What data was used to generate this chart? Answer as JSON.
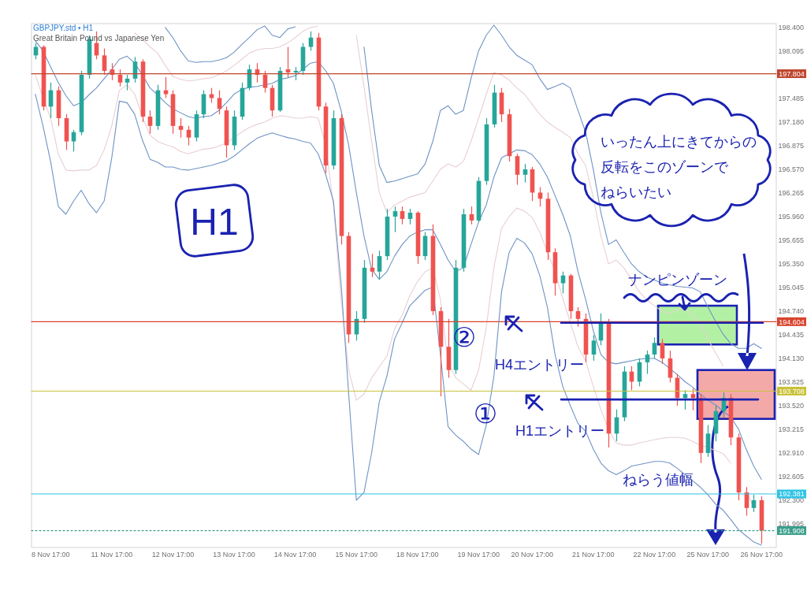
{
  "chart_data": {
    "type": "candlestick",
    "title": "GBPJPY.std • H1",
    "subtitle": "Great Britain Pound vs Japanese Yen",
    "categories": [
      null,
      null,
      "8 Nov 17:00",
      null,
      null,
      null,
      null,
      null,
      null,
      null,
      "11 Nov 17:00",
      null,
      null,
      null,
      null,
      null,
      null,
      null,
      "12 Nov 17:00",
      null,
      null,
      null,
      null,
      null,
      null,
      null,
      "13 Nov 17:00",
      null,
      null,
      null,
      null,
      null,
      null,
      null,
      "14 Nov 17:00",
      null,
      null,
      null,
      null,
      null,
      null,
      null,
      "15 Nov 17:00",
      null,
      null,
      null,
      null,
      null,
      null,
      null,
      "18 Nov 17:00",
      null,
      null,
      null,
      null,
      null,
      null,
      null,
      "19 Nov 17:00",
      null,
      null,
      null,
      null,
      null,
      null,
      "20 Nov 17:00",
      null,
      null,
      null,
      null,
      null,
      null,
      null,
      "21 Nov 17:00",
      null,
      null,
      null,
      null,
      null,
      null,
      null,
      "22 Nov 17:00",
      null,
      null,
      null,
      null,
      null,
      null,
      "25 Nov 17:00",
      null,
      null,
      null,
      null,
      null,
      null,
      "26 Nov 17:00"
    ],
    "ohlc": [
      [
        198.04,
        198.2,
        197.99,
        198.15
      ],
      [
        198.15,
        198.17,
        197.33,
        197.38
      ],
      [
        197.38,
        197.69,
        197.23,
        197.59
      ],
      [
        197.59,
        197.64,
        197.13,
        197.23
      ],
      [
        197.23,
        197.28,
        196.82,
        196.93
      ],
      [
        196.93,
        197.08,
        196.8,
        197.05
      ],
      [
        197.05,
        197.84,
        197.01,
        197.79
      ],
      [
        197.79,
        198.3,
        197.74,
        198.25
      ],
      [
        198.2,
        198.35,
        197.99,
        198.04
      ],
      [
        198.04,
        198.13,
        197.79,
        197.84
      ],
      [
        197.86,
        197.94,
        197.72,
        197.79
      ],
      [
        197.79,
        197.86,
        197.64,
        197.69
      ],
      [
        197.69,
        197.79,
        197.59,
        197.74
      ],
      [
        197.74,
        198.02,
        197.69,
        197.96
      ],
      [
        197.96,
        197.99,
        197.18,
        197.25
      ],
      [
        197.25,
        197.33,
        197.03,
        197.13
      ],
      [
        197.13,
        197.66,
        197.08,
        197.59
      ],
      [
        197.59,
        197.76,
        197.49,
        197.54
      ],
      [
        197.54,
        197.59,
        197.03,
        197.13
      ],
      [
        197.13,
        197.23,
        196.98,
        197.08
      ],
      [
        197.08,
        197.13,
        196.88,
        196.98
      ],
      [
        196.98,
        197.33,
        196.93,
        197.28
      ],
      [
        197.28,
        197.59,
        197.23,
        197.54
      ],
      [
        197.54,
        197.62,
        197.43,
        197.49
      ],
      [
        197.49,
        197.59,
        197.28,
        197.35
      ],
      [
        197.33,
        197.38,
        196.72,
        196.88
      ],
      [
        196.88,
        197.33,
        196.82,
        197.25
      ],
      [
        197.25,
        197.69,
        197.21,
        197.62
      ],
      [
        197.62,
        197.92,
        197.59,
        197.86
      ],
      [
        197.86,
        197.94,
        197.69,
        197.79
      ],
      [
        197.79,
        197.84,
        197.56,
        197.62
      ],
      [
        197.62,
        197.66,
        197.25,
        197.33
      ],
      [
        197.33,
        197.89,
        197.31,
        197.84
      ],
      [
        197.86,
        198.15,
        197.76,
        197.82
      ],
      [
        197.82,
        197.89,
        197.72,
        197.84
      ],
      [
        197.84,
        198.2,
        197.79,
        198.15
      ],
      [
        198.15,
        198.35,
        198.1,
        198.27
      ],
      [
        198.27,
        198.33,
        197.33,
        197.38
      ],
      [
        197.38,
        197.43,
        196.52,
        196.62
      ],
      [
        196.62,
        197.33,
        196.57,
        197.23
      ],
      [
        197.23,
        197.28,
        195.6,
        195.71
      ],
      [
        195.71,
        195.76,
        194.33,
        194.44
      ],
      [
        194.44,
        194.74,
        194.36,
        194.64
      ],
      [
        194.64,
        195.4,
        194.59,
        195.3
      ],
      [
        195.3,
        195.48,
        195.18,
        195.25
      ],
      [
        195.25,
        195.52,
        195.15,
        195.45
      ],
      [
        195.45,
        196.06,
        195.4,
        195.96
      ],
      [
        195.96,
        196.09,
        195.76,
        196.03
      ],
      [
        196.03,
        196.09,
        195.86,
        195.93
      ],
      [
        195.93,
        196.06,
        195.86,
        196.01
      ],
      [
        196.01,
        196.03,
        195.35,
        195.45
      ],
      [
        195.45,
        195.76,
        195.4,
        195.71
      ],
      [
        195.71,
        195.86,
        194.69,
        194.74
      ],
      [
        194.74,
        194.79,
        193.64,
        194.28
      ],
      [
        194.28,
        194.64,
        193.88,
        193.98
      ],
      [
        193.98,
        195.4,
        193.93,
        195.3
      ],
      [
        195.3,
        196.06,
        195.25,
        195.99
      ],
      [
        195.99,
        196.09,
        195.86,
        195.91
      ],
      [
        195.91,
        196.47,
        195.89,
        196.42
      ],
      [
        196.42,
        197.23,
        196.37,
        197.15
      ],
      [
        197.15,
        197.66,
        197.11,
        197.56
      ],
      [
        197.56,
        197.62,
        197.18,
        197.28
      ],
      [
        197.28,
        197.35,
        196.67,
        196.74
      ],
      [
        196.74,
        196.77,
        196.37,
        196.5
      ],
      [
        196.5,
        196.64,
        196.4,
        196.57
      ],
      [
        196.57,
        196.6,
        196.16,
        196.27
      ],
      [
        196.27,
        196.34,
        196.09,
        196.19
      ],
      [
        196.19,
        196.27,
        195.4,
        195.5
      ],
      [
        195.5,
        195.55,
        194.94,
        195.1
      ],
      [
        195.1,
        195.25,
        194.97,
        195.2
      ],
      [
        195.2,
        195.22,
        194.64,
        194.74
      ],
      [
        194.74,
        194.79,
        194.54,
        194.64
      ],
      [
        194.64,
        194.71,
        194.08,
        194.18
      ],
      [
        194.18,
        194.43,
        194.1,
        194.36
      ],
      [
        194.36,
        194.71,
        194.3,
        194.59
      ],
      [
        194.59,
        194.64,
        192.98,
        193.16
      ],
      [
        193.16,
        193.47,
        193.06,
        193.37
      ],
      [
        193.37,
        194.03,
        193.32,
        193.96
      ],
      [
        193.96,
        194.03,
        193.72,
        193.83
      ],
      [
        193.83,
        194.13,
        193.77,
        194.08
      ],
      [
        194.08,
        194.23,
        193.93,
        194.18
      ],
      [
        194.18,
        194.4,
        194.13,
        194.33
      ],
      [
        194.33,
        194.38,
        194.06,
        194.13
      ],
      [
        194.13,
        194.23,
        193.82,
        193.88
      ],
      [
        193.88,
        193.93,
        193.52,
        193.62
      ],
      [
        193.62,
        193.72,
        193.47,
        193.67
      ],
      [
        193.67,
        193.74,
        193.46,
        193.62
      ],
      [
        193.62,
        193.67,
        192.78,
        192.91
      ],
      [
        192.91,
        193.27,
        192.86,
        193.16
      ],
      [
        193.16,
        193.52,
        193.06,
        193.45
      ],
      [
        193.45,
        193.69,
        193.37,
        193.62
      ],
      [
        193.62,
        193.67,
        193.01,
        193.11
      ],
      [
        193.11,
        193.16,
        192.3,
        192.4
      ],
      [
        192.4,
        192.47,
        192.1,
        192.2
      ],
      [
        192.2,
        192.37,
        192.15,
        192.3
      ],
      [
        192.3,
        192.35,
        191.74,
        191.908
      ]
    ],
    "colors": [
      "#26a69a",
      "#ef5350",
      "#26a69a",
      "#ef5350",
      "#ef5350",
      "#26a69a",
      "#26a69a",
      "#26a69a",
      "#ef5350",
      "#ef5350",
      "#ef5350",
      "#ef5350",
      "#26a69a",
      "#26a69a",
      "#ef5350",
      "#ef5350",
      "#26a69a",
      "#ef5350",
      "#ef5350",
      "#ef5350",
      "#ef5350",
      "#26a69a",
      "#26a69a",
      "#ef5350",
      "#ef5350",
      "#ef5350",
      "#26a69a",
      "#26a69a",
      "#26a69a",
      "#ef5350",
      "#ef5350",
      "#ef5350",
      "#26a69a",
      "#ef5350",
      "#26a69a",
      "#26a69a",
      "#26a69a",
      "#ef5350",
      "#ef5350",
      "#26a69a",
      "#ef5350",
      "#ef5350",
      "#26a69a",
      "#26a69a",
      "#ef5350",
      "#26a69a",
      "#26a69a",
      "#26a69a",
      "#ef5350",
      "#26a69a",
      "#ef5350",
      "#26a69a",
      "#ef5350",
      "#ef5350",
      "#ef5350",
      "#26a69a",
      "#26a69a",
      "#ef5350",
      "#26a69a",
      "#26a69a",
      "#26a69a",
      "#ef5350",
      "#ef5350",
      "#ef5350",
      "#26a69a",
      "#ef5350",
      "#ef5350",
      "#ef5350",
      "#ef5350",
      "#26a69a",
      "#ef5350",
      "#ef5350",
      "#ef5350",
      "#26a69a",
      "#26a69a",
      "#ef5350",
      "#26a69a",
      "#26a69a",
      "#ef5350",
      "#26a69a",
      "#26a69a",
      "#26a69a",
      "#ef5350",
      "#ef5350",
      "#ef5350",
      "#26a69a",
      "#ef5350",
      "#ef5350",
      "#26a69a",
      "#26a69a",
      "#26a69a",
      "#ef5350",
      "#ef5350",
      "#ef5350",
      "#26a69a",
      "#ef5350"
    ],
    "series": [
      {
        "type": "line",
        "color": "#6f93c4",
        "values": [
          null,
          null,
          null,
          null,
          null,
          null,
          null,
          null,
          null,
          null,
          null,
          null,
          null,
          null,
          null,
          null,
          null,
          198.4,
          198.27,
          198.1,
          197.97,
          197.95,
          197.96,
          197.96,
          197.98,
          198.01,
          198.08,
          198.18,
          198.27,
          198.37,
          198.42,
          198.3,
          198.27,
          198.38,
          198.41,
          null,
          null,
          null,
          null,
          null,
          null,
          null,
          null,
          198.15,
          197.33,
          196.62,
          196.4,
          196.42,
          196.45,
          196.48,
          196.51,
          196.64,
          196.93,
          197.33,
          197.39,
          197.28,
          197.33,
          197.74,
          198.1,
          198.3,
          198.43,
          198.3,
          198.15,
          198.04,
          197.98,
          197.92,
          197.74,
          197.6,
          197.64,
          197.68,
          197.62,
          197.33,
          197.05,
          196.57,
          196.01,
          195.6,
          195.66,
          195.5,
          195.35,
          195.25,
          195.18,
          195.14,
          195.1,
          195.08,
          195.06,
          195.05,
          195.04,
          194.99,
          194.79,
          194.61,
          194.44,
          194.32,
          194.26,
          194.26,
          194.32,
          194.26
        ]
      },
      {
        "type": "line",
        "color": "#e9cfd3",
        "values": [
          null,
          null,
          null,
          null,
          null,
          null,
          null,
          null,
          null,
          null,
          null,
          null,
          null,
          198.33,
          198.25,
          198.15,
          198.07,
          197.91,
          197.77,
          197.73,
          197.71,
          197.72,
          197.74,
          197.75,
          197.79,
          197.84,
          197.91,
          197.99,
          198.07,
          198.11,
          198.13,
          198.13,
          198.15,
          198.2,
          198.27,
          198.35,
          198.4,
          198.42,
          null,
          null,
          null,
          null,
          198.3,
          197.64,
          196.93,
          196.27,
          196.01,
          196.11,
          196.16,
          196.21,
          196.24,
          196.27,
          196.42,
          196.57,
          196.64,
          196.6,
          196.67,
          196.93,
          197.23,
          197.54,
          197.82,
          197.79,
          197.72,
          197.62,
          197.54,
          197.41,
          197.28,
          197.18,
          197.11,
          197.05,
          196.98,
          196.77,
          196.62,
          196.21,
          195.71,
          195.35,
          195.4,
          195.3,
          195.15,
          194.99,
          194.89,
          194.81,
          194.74,
          194.71,
          194.76,
          194.77,
          194.69,
          194.57,
          194.38,
          194.2,
          194.03,
          null,
          null,
          null,
          null,
          null
        ]
      },
      {
        "type": "line",
        "color": "#6f93c4",
        "values": [
          198.23,
          198.1,
          197.89,
          197.69,
          197.52,
          197.39,
          197.43,
          197.53,
          197.62,
          197.74,
          197.86,
          197.99,
          198.03,
          197.94,
          197.79,
          197.62,
          197.53,
          197.43,
          197.35,
          197.3,
          197.25,
          197.23,
          197.25,
          197.26,
          197.33,
          197.43,
          197.54,
          197.6,
          197.63,
          197.64,
          197.66,
          197.68,
          197.73,
          197.75,
          197.78,
          197.86,
          197.94,
          197.96,
          197.84,
          197.68,
          197.33,
          196.88,
          196.27,
          195.71,
          195.28,
          195.15,
          195.25,
          195.45,
          195.6,
          195.71,
          195.76,
          195.79,
          195.79,
          195.6,
          195.4,
          195.25,
          195.3,
          195.6,
          195.89,
          196.11,
          196.47,
          196.72,
          196.77,
          196.82,
          196.81,
          196.76,
          196.64,
          196.47,
          196.23,
          195.99,
          195.71,
          195.25,
          194.89,
          194.49,
          194.18,
          194.08,
          194.06,
          194.08,
          194.1,
          194.12,
          194.13,
          194.13,
          194.08,
          194.0,
          193.92,
          193.83,
          193.76,
          193.67,
          193.59,
          193.53,
          193.45,
          193.37,
          193.22,
          192.96,
          192.74,
          192.57
        ]
      },
      {
        "type": "line",
        "color": "#e9cfd3",
        "values": [
          197.79,
          197.49,
          197.23,
          196.77,
          196.56,
          196.55,
          196.56,
          196.56,
          196.62,
          196.82,
          197.13,
          197.59,
          197.66,
          197.54,
          197.25,
          197.01,
          196.93,
          196.89,
          196.86,
          196.8,
          196.77,
          196.8,
          196.83,
          196.84,
          196.87,
          196.91,
          196.98,
          197.05,
          197.11,
          197.15,
          197.18,
          197.23,
          197.26,
          197.25,
          197.23,
          197.23,
          197.25,
          197.23,
          196.88,
          196.11,
          194.89,
          193.98,
          193.59,
          193.67,
          193.88,
          194.02,
          194.16,
          194.51,
          194.69,
          194.94,
          195.12,
          195.25,
          195.3,
          194.89,
          194.08,
          193.88,
          193.8,
          193.72,
          193.98,
          194.53,
          195.3,
          195.81,
          195.96,
          196.07,
          196.03,
          195.95,
          195.76,
          195.5,
          195.25,
          194.91,
          194.59,
          194.28,
          194.1,
          193.77,
          193.47,
          193.21,
          193.04,
          193.01,
          193.01,
          193.04,
          193.06,
          193.08,
          193.1,
          193.11,
          193.11,
          193.1,
          193.06,
          193.01,
          192.98,
          192.94,
          192.9,
          192.78,
          null,
          192.43,
          192.2,
          null
        ]
      },
      {
        "type": "line",
        "color": "#6f93c4",
        "values": [
          197.54,
          197.13,
          196.67,
          196.09,
          195.99,
          196.16,
          196.3,
          196.13,
          196.01,
          196.16,
          196.72,
          197.45,
          197.43,
          197.28,
          196.95,
          196.7,
          196.66,
          196.6,
          196.6,
          196.57,
          196.56,
          196.58,
          196.6,
          196.62,
          196.65,
          196.68,
          196.74,
          196.82,
          196.9,
          196.97,
          197.01,
          197.04,
          197.01,
          196.98,
          196.96,
          196.93,
          196.91,
          196.77,
          196.5,
          196.16,
          195.1,
          193.67,
          192.3,
          192.4,
          192.91,
          193.57,
          193.9,
          194.38,
          194.59,
          194.81,
          194.91,
          195.01,
          195.05,
          194.18,
          193.25,
          193.14,
          193.06,
          192.96,
          192.89,
          193.27,
          193.9,
          194.99,
          195.5,
          195.68,
          195.62,
          195.48,
          195.2,
          194.79,
          194.18,
          193.77,
          193.52,
          193.29,
          193.19,
          192.96,
          192.78,
          192.68,
          192.63,
          192.68,
          192.74,
          192.76,
          192.78,
          192.8,
          192.8,
          192.78,
          192.71,
          192.63,
          192.55,
          192.47,
          192.37,
          192.25,
          192.17,
          192.05,
          191.92,
          191.84,
          191.76,
          191.72
        ]
      }
    ],
    "ylim": [
      191.69,
      198.45
    ],
    "yticks": [
      {
        "value": 198.4,
        "label": "198.400"
      },
      198.095,
      197.485,
      {
        "value": 197.18,
        "label": "197.180"
      },
      196.875,
      {
        "value": 196.57,
        "label": "196.570"
      },
      196.265,
      {
        "value": 195.96,
        "label": "195.960"
      },
      195.655,
      {
        "value": 195.35,
        "label": "195.350"
      },
      195.045,
      {
        "value": 194.74,
        "label": "194.740"
      },
      194.435,
      {
        "value": 194.13,
        "label": "194.130"
      },
      193.825,
      {
        "value": 193.52,
        "label": "193.520"
      },
      193.215,
      {
        "value": 192.91,
        "label": "192.910"
      },
      192.605,
      {
        "value": 192.3,
        "label": "192.300"
      },
      191.995
    ],
    "ref_lines": [
      {
        "axis": "y",
        "value": 197.804,
        "label": "197.804",
        "color": "#c0462e"
      },
      {
        "axis": "y",
        "value": 194.604,
        "label": "194.604",
        "color": "#d8442c"
      },
      {
        "axis": "y",
        "value": 193.708,
        "label": "193.708",
        "color": "#c9c23a"
      },
      {
        "axis": "y",
        "value": 192.381,
        "label": "192.381",
        "color": "#2ec4e6"
      },
      {
        "axis": "y",
        "value": 191.908,
        "label": "191.908",
        "color": "#3a9e8c",
        "line_style": "dotted"
      },
      {
        "axis": "y",
        "value": 194.59,
        "color": "#1a22b0"
      },
      {
        "axis": "y",
        "value": 193.6,
        "color": "#1a22b0"
      }
    ],
    "bands": [
      {
        "axis": "y",
        "from": 194.31,
        "to": 194.81,
        "color": "#a4ee94",
        "label": "ナンピンゾーン"
      },
      {
        "axis": "y",
        "from": 193.35,
        "to": 193.98,
        "color": "#f29a9a"
      }
    ],
    "annotations": [
      "H1",
      "いったん上にきてからの反転をこのゾーンでねらいたい",
      "②",
      "H4エントリー",
      "①",
      "H1エントリー",
      "ねらう値幅"
    ]
  }
}
